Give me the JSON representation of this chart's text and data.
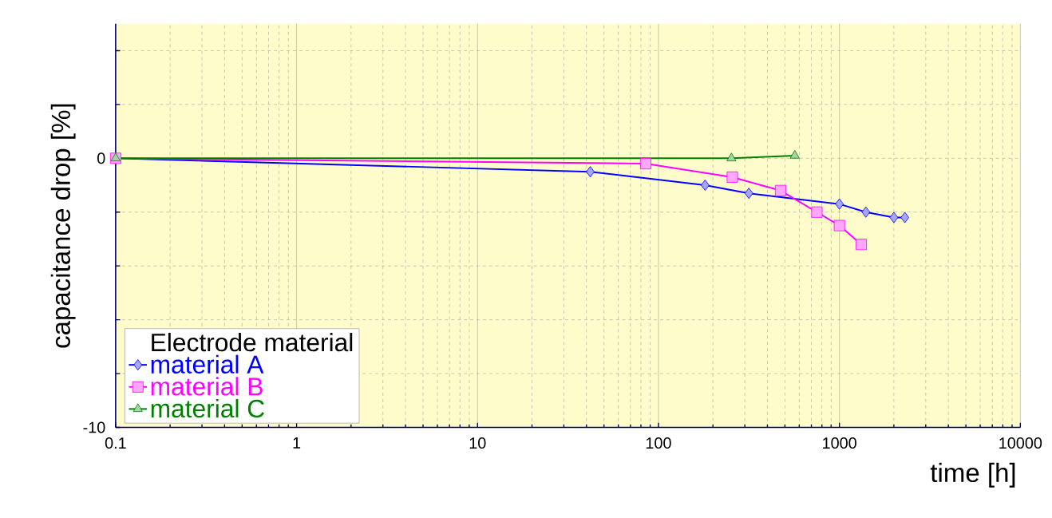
{
  "chart_data": {
    "type": "line",
    "xlabel": "time [h]",
    "ylabel": "capacitance drop [%]",
    "legend_title": "Electrode material",
    "legend": "bottom left",
    "grid": true,
    "log": "x",
    "xlim": [
      0.1,
      10000
    ],
    "xticks": [
      0.1,
      1,
      10,
      100,
      1000,
      10000
    ],
    "ylim": [
      -10,
      5
    ],
    "yticks": [
      -10,
      {
        "value": -8,
        "label": null
      },
      {
        "value": -6,
        "label": null
      },
      {
        "value": -4,
        "label": null
      },
      {
        "value": -2,
        "label": null
      },
      0,
      {
        "value": 2,
        "label": null
      },
      {
        "value": 4,
        "label": null
      }
    ],
    "series": [
      {
        "name": "material A",
        "color": "#0000ff",
        "marker": "diamond",
        "x": [
          0.1,
          42,
          181,
          316,
          1000,
          1400,
          2000,
          2300
        ],
        "values": [
          0,
          -0.5,
          -1.0,
          -1.3,
          -1.7,
          -2.0,
          -2.2,
          -2.2
        ]
      },
      {
        "name": "material B",
        "color": "#ff00ff",
        "marker": "square",
        "x": [
          0.1,
          85,
          256,
          473,
          751,
          1000,
          1320
        ],
        "values": [
          0,
          -0.2,
          -0.7,
          -1.2,
          -2.0,
          -2.5,
          -3.2
        ]
      },
      {
        "name": "material C",
        "color": "#008000",
        "marker": "triangle",
        "x": [
          0.1,
          253,
          567
        ],
        "values": [
          0,
          0,
          0.1
        ]
      }
    ]
  }
}
